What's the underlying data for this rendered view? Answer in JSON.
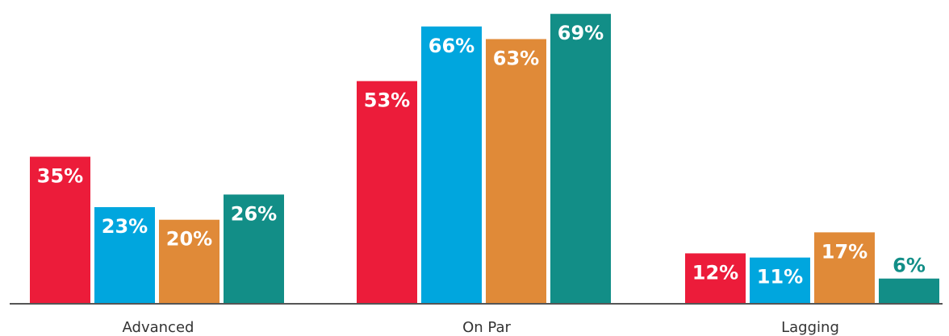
{
  "chart_data": {
    "type": "bar",
    "categories": [
      "Advanced",
      "On Par",
      "Lagging"
    ],
    "series": [
      {
        "values": [
          35,
          53,
          12
        ],
        "color": "#ec1c3a"
      },
      {
        "values": [
          23,
          66,
          11
        ],
        "color": "#00a6de"
      },
      {
        "values": [
          20,
          63,
          17
        ],
        "color": "#e08a38"
      },
      {
        "values": [
          26,
          69,
          6
        ],
        "color": "#128e87"
      }
    ],
    "value_suffix": "%",
    "ylim": [
      0,
      70
    ],
    "grid": false,
    "legend": "none",
    "axis_color": "#555555"
  }
}
